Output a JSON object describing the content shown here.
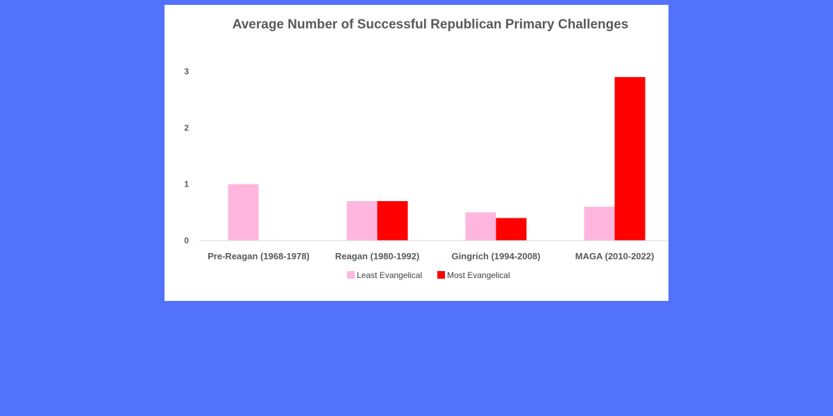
{
  "chart_data": {
    "type": "bar",
    "title": "Average Number of Successful Republican Primary Challenges",
    "xlabel": "",
    "ylabel": "",
    "categories": [
      "Pre-Reagan (1968-1978)",
      "Reagan (1980-1992)",
      "Gingrich (1994-2008)",
      "MAGA (2010-2022)"
    ],
    "series": [
      {
        "name": "Least Evangelical",
        "color": "#ffb6de",
        "values": [
          1.0,
          0.7,
          0.5,
          0.6
        ]
      },
      {
        "name": "Most Evangelical",
        "color": "#ff0000",
        "values": [
          0,
          0.7,
          0.4,
          2.9
        ]
      }
    ],
    "ylim": [
      0,
      3
    ],
    "yticks": [
      0,
      1,
      2,
      3
    ],
    "grid": false,
    "legend_position": "bottom"
  },
  "colors": {
    "background": "#5272fc",
    "panel": "#ffffff"
  }
}
